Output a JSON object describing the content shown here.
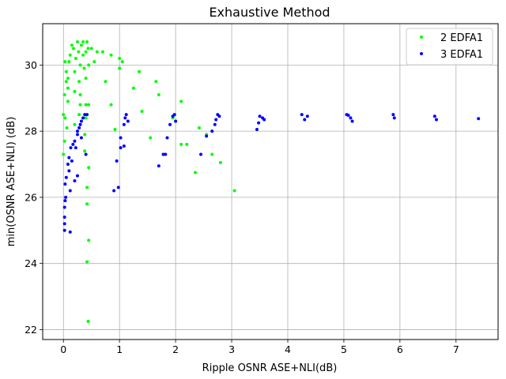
{
  "chart_data": {
    "type": "scatter",
    "title": "Exhaustive Method",
    "xlabel": "Ripple OSNR ASE+NLI(dB)",
    "ylabel": "min(OSNR ASE+NLI) (dB)",
    "xlim": [
      -0.37,
      7.75
    ],
    "ylim": [
      21.7,
      31.25
    ],
    "xticks": [
      "0",
      "1",
      "2",
      "3",
      "4",
      "5",
      "6",
      "7"
    ],
    "yticks": [
      "22",
      "24",
      "26",
      "28",
      "30"
    ],
    "grid": true,
    "legend_position": "top-right",
    "series": [
      {
        "name": "2 EDFA1",
        "color": "#00ff00",
        "points": [
          [
            0.02,
            29.1
          ],
          [
            0.0,
            28.5
          ],
          [
            0.03,
            28.4
          ],
          [
            0.05,
            29.5
          ],
          [
            0.05,
            29.8
          ],
          [
            0.03,
            30.1
          ],
          [
            0.02,
            27.7
          ],
          [
            0.0,
            27.3
          ],
          [
            0.06,
            28.1
          ],
          [
            0.08,
            28.9
          ],
          [
            0.08,
            29.3
          ],
          [
            0.08,
            29.6
          ],
          [
            0.1,
            30.1
          ],
          [
            0.12,
            30.3
          ],
          [
            0.15,
            30.6
          ],
          [
            0.18,
            30.5
          ],
          [
            0.2,
            29.2
          ],
          [
            0.2,
            28.2
          ],
          [
            0.2,
            29.8
          ],
          [
            0.22,
            30.2
          ],
          [
            0.25,
            30.7
          ],
          [
            0.27,
            30.4
          ],
          [
            0.28,
            29.5
          ],
          [
            0.28,
            28.5
          ],
          [
            0.3,
            28.8
          ],
          [
            0.3,
            29.1
          ],
          [
            0.3,
            30.0
          ],
          [
            0.32,
            30.6
          ],
          [
            0.35,
            30.7
          ],
          [
            0.35,
            30.3
          ],
          [
            0.37,
            29.9
          ],
          [
            0.38,
            27.4
          ],
          [
            0.38,
            27.9
          ],
          [
            0.4,
            28.4
          ],
          [
            0.4,
            28.8
          ],
          [
            0.4,
            29.6
          ],
          [
            0.4,
            30.4
          ],
          [
            0.42,
            30.7
          ],
          [
            0.44,
            30.5
          ],
          [
            0.45,
            30.0
          ],
          [
            0.45,
            28.8
          ],
          [
            0.45,
            26.9
          ],
          [
            0.42,
            26.3
          ],
          [
            0.42,
            25.8
          ],
          [
            0.45,
            24.7
          ],
          [
            0.42,
            24.05
          ],
          [
            0.44,
            22.25
          ],
          [
            0.5,
            30.5
          ],
          [
            0.55,
            30.1
          ],
          [
            0.6,
            30.4
          ],
          [
            0.7,
            30.4
          ],
          [
            0.75,
            29.5
          ],
          [
            0.85,
            30.3
          ],
          [
            0.85,
            28.8
          ],
          [
            0.92,
            28.05
          ],
          [
            1.0,
            30.2
          ],
          [
            1.0,
            29.9
          ],
          [
            1.05,
            30.1
          ],
          [
            1.25,
            29.3
          ],
          [
            1.35,
            29.8
          ],
          [
            1.4,
            28.6
          ],
          [
            1.55,
            27.8
          ],
          [
            1.65,
            29.5
          ],
          [
            1.7,
            29.1
          ],
          [
            1.95,
            28.4
          ],
          [
            2.1,
            28.9
          ],
          [
            2.1,
            27.6
          ],
          [
            2.2,
            27.6
          ],
          [
            2.35,
            26.75
          ],
          [
            2.42,
            28.1
          ],
          [
            2.55,
            27.9
          ],
          [
            2.65,
            27.3
          ],
          [
            2.8,
            27.05
          ],
          [
            3.05,
            26.2
          ]
        ]
      },
      {
        "name": "3 EDFA1",
        "color": "#0000ff",
        "points": [
          [
            0.02,
            25.0
          ],
          [
            0.02,
            25.2
          ],
          [
            0.02,
            25.4
          ],
          [
            0.02,
            25.7
          ],
          [
            0.03,
            25.9
          ],
          [
            0.04,
            26.0
          ],
          [
            0.03,
            26.4
          ],
          [
            0.05,
            26.6
          ],
          [
            0.08,
            27.0
          ],
          [
            0.1,
            26.8
          ],
          [
            0.1,
            27.2
          ],
          [
            0.12,
            24.95
          ],
          [
            0.12,
            26.2
          ],
          [
            0.13,
            27.5
          ],
          [
            0.15,
            27.1
          ],
          [
            0.17,
            27.6
          ],
          [
            0.2,
            26.5
          ],
          [
            0.2,
            27.7
          ],
          [
            0.22,
            27.5
          ],
          [
            0.25,
            27.9
          ],
          [
            0.25,
            28.0
          ],
          [
            0.25,
            26.65
          ],
          [
            0.28,
            28.1
          ],
          [
            0.3,
            28.2
          ],
          [
            0.32,
            28.3
          ],
          [
            0.32,
            27.8
          ],
          [
            0.35,
            28.4
          ],
          [
            0.38,
            28.5
          ],
          [
            0.4,
            27.3
          ],
          [
            0.42,
            28.5
          ],
          [
            0.9,
            26.2
          ],
          [
            0.95,
            27.1
          ],
          [
            0.98,
            26.3
          ],
          [
            1.02,
            27.5
          ],
          [
            1.02,
            27.8
          ],
          [
            1.08,
            27.55
          ],
          [
            1.08,
            28.2
          ],
          [
            1.1,
            28.4
          ],
          [
            1.12,
            28.5
          ],
          [
            1.15,
            28.3
          ],
          [
            1.7,
            26.95
          ],
          [
            1.78,
            27.3
          ],
          [
            1.82,
            27.3
          ],
          [
            1.85,
            27.8
          ],
          [
            1.9,
            28.2
          ],
          [
            1.95,
            28.45
          ],
          [
            1.98,
            28.5
          ],
          [
            2.0,
            28.3
          ],
          [
            2.45,
            27.3
          ],
          [
            2.55,
            27.85
          ],
          [
            2.65,
            28.0
          ],
          [
            2.7,
            28.2
          ],
          [
            2.72,
            28.35
          ],
          [
            2.75,
            28.5
          ],
          [
            2.78,
            28.45
          ],
          [
            3.45,
            28.05
          ],
          [
            3.48,
            28.25
          ],
          [
            3.5,
            28.45
          ],
          [
            3.55,
            28.4
          ],
          [
            3.58,
            28.35
          ],
          [
            4.25,
            28.5
          ],
          [
            4.3,
            28.35
          ],
          [
            4.35,
            28.45
          ],
          [
            5.05,
            28.5
          ],
          [
            5.08,
            28.48
          ],
          [
            5.12,
            28.4
          ],
          [
            5.15,
            28.3
          ],
          [
            5.88,
            28.5
          ],
          [
            5.9,
            28.4
          ],
          [
            6.62,
            28.45
          ],
          [
            6.65,
            28.35
          ],
          [
            7.4,
            28.38
          ]
        ]
      }
    ]
  }
}
